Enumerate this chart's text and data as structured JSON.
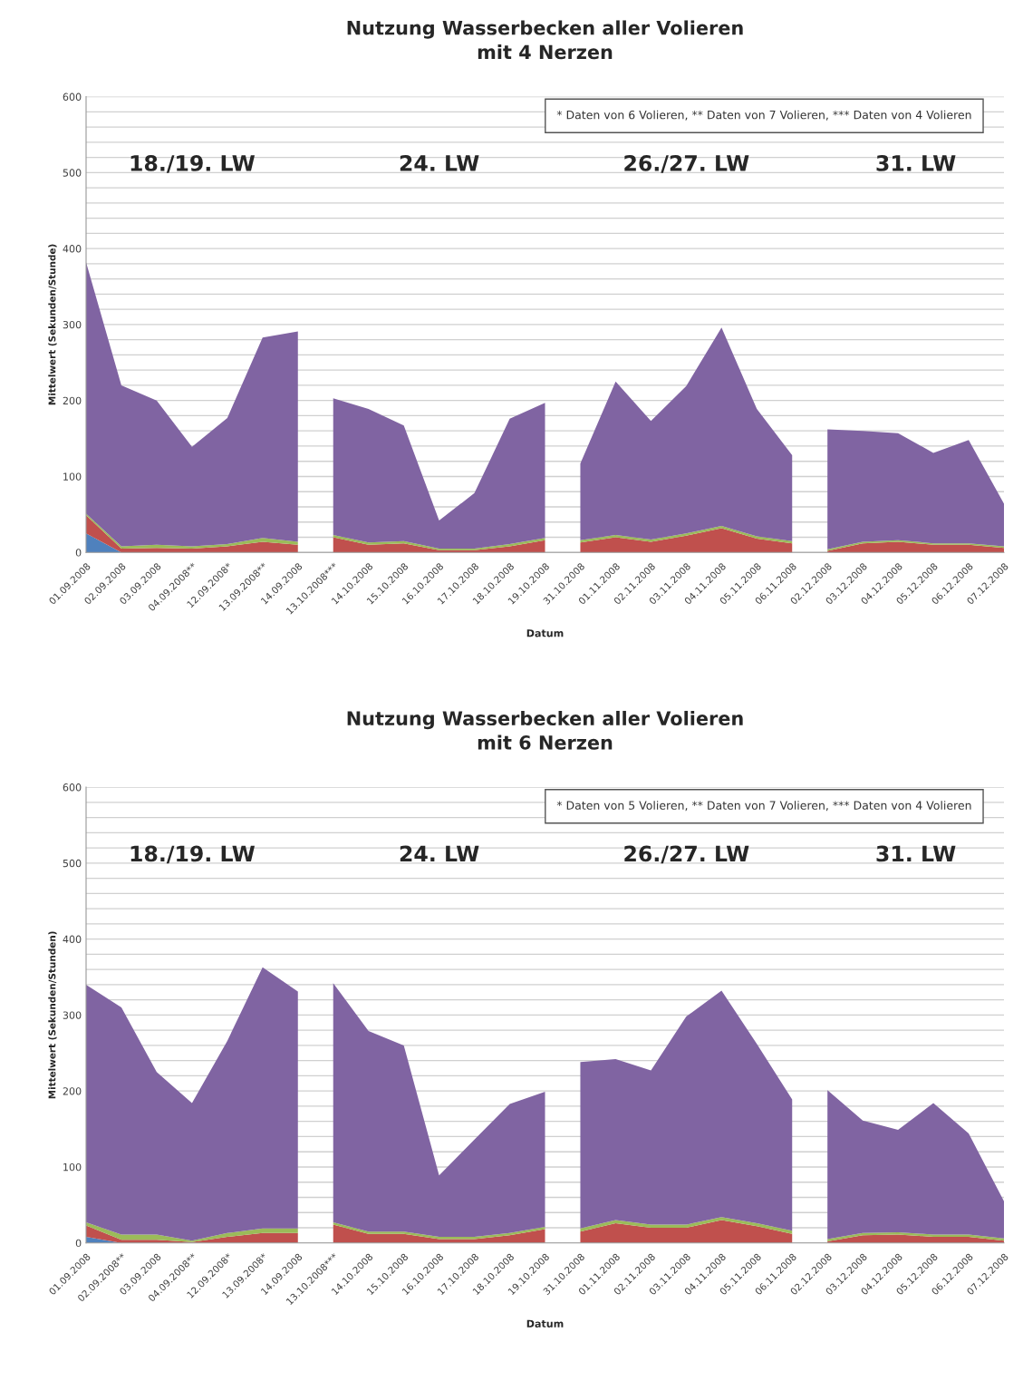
{
  "chart_data": [
    {
      "type": "area",
      "title": "Nutzung Wasserbecken aller Volieren\nmit 4 Nerzen",
      "xlabel": "Datum",
      "ylabel": "Mittelwert (Sekunden/Stunde)",
      "stacked": true,
      "grid": "y",
      "legend": false,
      "annotations": [
        "* Daten von 6 Volieren, ** Daten von 7 Volieren, *** Daten von 4 Volieren",
        "18./19. LW",
        "24. LW",
        "26./27. LW",
        "31. LW"
      ],
      "categories": [
        "01.09.2008",
        "02.09.2008",
        "03.09.2008",
        "04.09.2008**",
        "12.09.2008*",
        "13.09.2008**",
        "14.09.2008",
        "13.10.2008***",
        "14.10.2008",
        "15.10.2008",
        "16.10.2008",
        "17.10.2008",
        "18.10.2008",
        "19.10.2008",
        "31.10.2008",
        "01.11.2008",
        "02.11.2008",
        "03.11.2008",
        "04.11.2008",
        "05.11.2008",
        "06.11.2008",
        "02.12.2008",
        "03.12.2008",
        "04.12.2008",
        "05.12.2008",
        "06.12.2008",
        "07.12.2008"
      ],
      "ylim": [
        0,
        600
      ],
      "yticks": [
        0,
        {
          "value": 20,
          "label": null
        },
        {
          "value": 40,
          "label": null
        },
        {
          "value": 60,
          "label": null
        },
        {
          "value": 80,
          "label": null
        },
        100,
        {
          "value": 120,
          "label": null
        },
        {
          "value": 140,
          "label": null
        },
        {
          "value": 160,
          "label": null
        },
        {
          "value": 180,
          "label": null
        },
        200,
        {
          "value": 220,
          "label": null
        },
        {
          "value": 240,
          "label": null
        },
        {
          "value": 260,
          "label": null
        },
        {
          "value": 280,
          "label": null
        },
        300,
        {
          "value": 320,
          "label": null
        },
        {
          "value": 340,
          "label": null
        },
        {
          "value": 360,
          "label": null
        },
        {
          "value": 380,
          "label": null
        },
        400,
        {
          "value": 420,
          "label": null
        },
        {
          "value": 440,
          "label": null
        },
        {
          "value": 460,
          "label": null
        },
        {
          "value": 480,
          "label": null
        },
        500,
        {
          "value": 520,
          "label": null
        },
        {
          "value": 540,
          "label": null
        },
        {
          "value": 560,
          "label": null
        },
        {
          "value": 580,
          "label": null
        },
        600
      ],
      "series": [
        {
          "color": "#4f81bd",
          "values": [
            25,
            0,
            0,
            0,
            0,
            0,
            0,
            null,
            null,
            null,
            null,
            null,
            null,
            null,
            null,
            null,
            null,
            null,
            null,
            null,
            null,
            null,
            null,
            null,
            null,
            null,
            null
          ]
        },
        {
          "color": "#c0504d",
          "values": [
            24,
            5,
            6,
            5,
            8,
            14,
            10,
            null,
            null,
            null,
            null,
            null,
            null,
            null,
            null,
            null,
            null,
            null,
            null,
            null,
            null,
            null,
            null,
            null,
            null,
            null,
            null
          ]
        },
        {
          "color": "#9bbb59",
          "values": [
            2,
            3,
            4,
            3,
            3,
            5,
            4,
            null,
            null,
            null,
            null,
            null,
            null,
            null,
            null,
            null,
            null,
            null,
            null,
            null,
            null,
            null,
            null,
            null,
            null,
            null,
            null
          ]
        },
        {
          "color": "#8064a2",
          "values": [
            331,
            212,
            190,
            131,
            166,
            264,
            277,
            null,
            null,
            null,
            null,
            null,
            null,
            null,
            null,
            null,
            null,
            null,
            null,
            null,
            null,
            null,
            null,
            null,
            null,
            null,
            null
          ]
        },
        {
          "color": "#c0504d",
          "values": [
            null,
            null,
            null,
            null,
            null,
            null,
            null,
            20,
            10,
            12,
            3,
            3,
            8,
            16,
            null,
            null,
            null,
            null,
            null,
            null,
            null,
            null,
            null,
            null,
            null,
            null,
            null
          ]
        },
        {
          "color": "#9bbb59",
          "values": [
            null,
            null,
            null,
            null,
            null,
            null,
            null,
            3,
            3,
            3,
            2,
            2,
            3,
            3,
            null,
            null,
            null,
            null,
            null,
            null,
            null,
            null,
            null,
            null,
            null,
            null,
            null
          ]
        },
        {
          "color": "#8064a2",
          "values": [
            null,
            null,
            null,
            null,
            null,
            null,
            null,
            180,
            176,
            152,
            37,
            73,
            165,
            178,
            null,
            null,
            null,
            null,
            null,
            null,
            null,
            null,
            null,
            null,
            null,
            null,
            null
          ]
        },
        {
          "color": "#c0504d",
          "values": [
            null,
            null,
            null,
            null,
            null,
            null,
            null,
            null,
            null,
            null,
            null,
            null,
            null,
            null,
            13,
            20,
            14,
            22,
            32,
            18,
            12,
            null,
            null,
            null,
            null,
            null,
            null
          ]
        },
        {
          "color": "#9bbb59",
          "values": [
            null,
            null,
            null,
            null,
            null,
            null,
            null,
            null,
            null,
            null,
            null,
            null,
            null,
            null,
            3,
            3,
            3,
            3,
            3,
            3,
            3,
            null,
            null,
            null,
            null,
            null,
            null
          ]
        },
        {
          "color": "#8064a2",
          "values": [
            null,
            null,
            null,
            null,
            null,
            null,
            null,
            null,
            null,
            null,
            null,
            null,
            null,
            null,
            101,
            202,
            156,
            194,
            261,
            168,
            113,
            null,
            null,
            null,
            null,
            null,
            null
          ]
        },
        {
          "color": "#c0504d",
          "values": [
            null,
            null,
            null,
            null,
            null,
            null,
            null,
            null,
            null,
            null,
            null,
            null,
            null,
            null,
            null,
            null,
            null,
            null,
            null,
            null,
            null,
            2,
            12,
            14,
            10,
            10,
            6
          ]
        },
        {
          "color": "#9bbb59",
          "values": [
            null,
            null,
            null,
            null,
            null,
            null,
            null,
            null,
            null,
            null,
            null,
            null,
            null,
            null,
            null,
            null,
            null,
            null,
            null,
            null,
            null,
            2,
            2,
            2,
            2,
            2,
            2
          ]
        },
        {
          "color": "#8064a2",
          "values": [
            null,
            null,
            null,
            null,
            null,
            null,
            null,
            null,
            null,
            null,
            null,
            null,
            null,
            null,
            null,
            null,
            null,
            null,
            null,
            null,
            null,
            158,
            146,
            141,
            119,
            136,
            56
          ]
        }
      ]
    },
    {
      "type": "area",
      "title": "Nutzung Wasserbecken aller Volieren\nmit 6 Nerzen",
      "xlabel": "Datum",
      "ylabel": "Mittelwert (Sekunden/Stunden)",
      "stacked": true,
      "grid": "y",
      "legend": false,
      "annotations": [
        "* Daten von 5 Volieren, ** Daten von 7 Volieren, *** Daten von 4 Volieren",
        "18./19. LW",
        "24. LW",
        "26./27. LW",
        "31. LW"
      ],
      "categories": [
        "01.09.2008",
        "02.09.2008**",
        "03.09.2008",
        "04.09.2008**",
        "12.09.2008*",
        "13.09.2008*",
        "14.09.2008",
        "13.10.2008***",
        "14.10.2008",
        "15.10.2008",
        "16.10.2008",
        "17.10.2008",
        "18.10.2008",
        "19.10.2008",
        "31.10.2008",
        "01.11.2008",
        "02.11.2008",
        "03.11.2008",
        "04.11.2008",
        "05.11.2008",
        "06.11.2008",
        "02.12.2008",
        "03.12.2008",
        "04.12.2008",
        "05.12.2008",
        "06.12.2008",
        "07.12.2008"
      ],
      "ylim": [
        0,
        600
      ],
      "yticks": [
        0,
        {
          "value": 20,
          "label": null
        },
        {
          "value": 40,
          "label": null
        },
        {
          "value": 60,
          "label": null
        },
        {
          "value": 80,
          "label": null
        },
        100,
        {
          "value": 120,
          "label": null
        },
        {
          "value": 140,
          "label": null
        },
        {
          "value": 160,
          "label": null
        },
        {
          "value": 180,
          "label": null
        },
        200,
        {
          "value": 220,
          "label": null
        },
        {
          "value": 240,
          "label": null
        },
        {
          "value": 260,
          "label": null
        },
        {
          "value": 280,
          "label": null
        },
        300,
        {
          "value": 320,
          "label": null
        },
        {
          "value": 340,
          "label": null
        },
        {
          "value": 360,
          "label": null
        },
        {
          "value": 380,
          "label": null
        },
        400,
        {
          "value": 420,
          "label": null
        },
        {
          "value": 440,
          "label": null
        },
        {
          "value": 460,
          "label": null
        },
        {
          "value": 480,
          "label": null
        },
        500,
        {
          "value": 520,
          "label": null
        },
        {
          "value": 540,
          "label": null
        },
        {
          "value": 560,
          "label": null
        },
        {
          "value": 580,
          "label": null
        },
        600
      ],
      "series": [
        {
          "color": "#4f81bd",
          "values": [
            8,
            0,
            0,
            0,
            0,
            0,
            0,
            null,
            null,
            null,
            null,
            null,
            null,
            null,
            null,
            null,
            null,
            null,
            null,
            null,
            null,
            null,
            null,
            null,
            null,
            null,
            null
          ]
        },
        {
          "color": "#c0504d",
          "values": [
            15,
            4,
            4,
            1,
            8,
            13,
            13,
            null,
            null,
            null,
            null,
            null,
            null,
            null,
            null,
            null,
            null,
            null,
            null,
            null,
            null,
            null,
            null,
            null,
            null,
            null,
            null
          ]
        },
        {
          "color": "#9bbb59",
          "values": [
            4,
            7,
            7,
            2,
            5,
            6,
            6,
            null,
            null,
            null,
            null,
            null,
            null,
            null,
            null,
            null,
            null,
            null,
            null,
            null,
            null,
            null,
            null,
            null,
            null,
            null,
            null
          ]
        },
        {
          "color": "#8064a2",
          "values": [
            313,
            299,
            214,
            181,
            253,
            344,
            312,
            null,
            null,
            null,
            null,
            null,
            null,
            null,
            null,
            null,
            null,
            null,
            null,
            null,
            null,
            null,
            null,
            null,
            null,
            null,
            null
          ]
        },
        {
          "color": "#c0504d",
          "values": [
            null,
            null,
            null,
            null,
            null,
            null,
            null,
            24,
            12,
            12,
            5,
            5,
            10,
            18,
            null,
            null,
            null,
            null,
            null,
            null,
            null,
            null,
            null,
            null,
            null,
            null,
            null
          ]
        },
        {
          "color": "#9bbb59",
          "values": [
            null,
            null,
            null,
            null,
            null,
            null,
            null,
            3,
            3,
            3,
            3,
            3,
            3,
            3,
            null,
            null,
            null,
            null,
            null,
            null,
            null,
            null,
            null,
            null,
            null,
            null,
            null
          ]
        },
        {
          "color": "#8064a2",
          "values": [
            null,
            null,
            null,
            null,
            null,
            null,
            null,
            315,
            264,
            245,
            81,
            128,
            170,
            178,
            null,
            null,
            null,
            null,
            null,
            null,
            null,
            null,
            null,
            null,
            null,
            null,
            null
          ]
        },
        {
          "color": "#c0504d",
          "values": [
            null,
            null,
            null,
            null,
            null,
            null,
            null,
            null,
            null,
            null,
            null,
            null,
            null,
            null,
            15,
            26,
            20,
            20,
            30,
            22,
            12,
            null,
            null,
            null,
            null,
            null,
            null
          ]
        },
        {
          "color": "#9bbb59",
          "values": [
            null,
            null,
            null,
            null,
            null,
            null,
            null,
            null,
            null,
            null,
            null,
            null,
            null,
            null,
            4,
            4,
            4,
            4,
            4,
            4,
            4,
            null,
            null,
            null,
            null,
            null,
            null
          ]
        },
        {
          "color": "#8064a2",
          "values": [
            null,
            null,
            null,
            null,
            null,
            null,
            null,
            null,
            null,
            null,
            null,
            null,
            null,
            null,
            219,
            212,
            203,
            274,
            298,
            236,
            173,
            null,
            null,
            null,
            null,
            null,
            null
          ]
        },
        {
          "color": "#c0504d",
          "values": [
            null,
            null,
            null,
            null,
            null,
            null,
            null,
            null,
            null,
            null,
            null,
            null,
            null,
            null,
            null,
            null,
            null,
            null,
            null,
            null,
            null,
            2,
            10,
            11,
            8,
            8,
            3
          ]
        },
        {
          "color": "#9bbb59",
          "values": [
            null,
            null,
            null,
            null,
            null,
            null,
            null,
            null,
            null,
            null,
            null,
            null,
            null,
            null,
            null,
            null,
            null,
            null,
            null,
            null,
            null,
            3,
            3,
            3,
            3,
            3,
            3
          ]
        },
        {
          "color": "#8064a2",
          "values": [
            null,
            null,
            null,
            null,
            null,
            null,
            null,
            null,
            null,
            null,
            null,
            null,
            null,
            null,
            null,
            null,
            null,
            null,
            null,
            null,
            null,
            196,
            148,
            135,
            173,
            133,
            49
          ]
        }
      ]
    }
  ]
}
